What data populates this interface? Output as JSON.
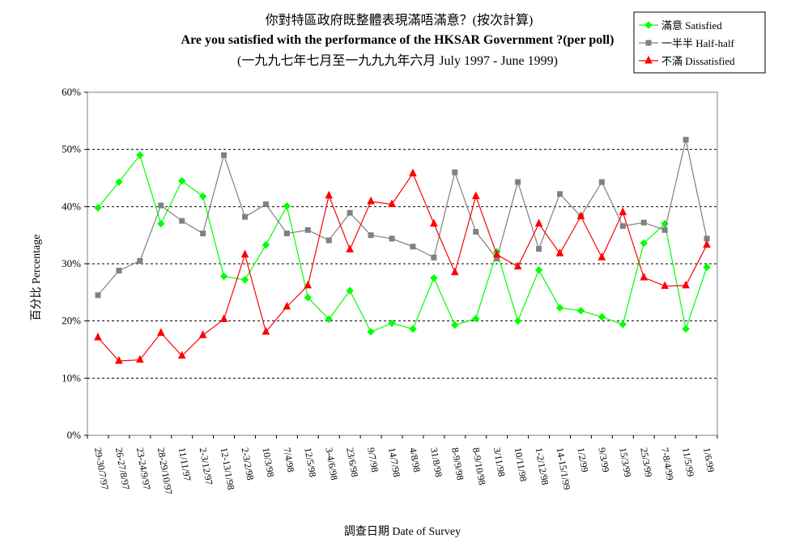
{
  "chart_data": {
    "type": "line",
    "title": "你對特區政府既整體表現滿唔滿意？(按次計算)",
    "subtitle": "Are you satisfied with the performance of the HKSAR Government ?(per poll)",
    "subtitle2": "(一九九七年七月至一九九九年六月 July 1997 - June 1999)",
    "xlabel": "調查日期 Date of Survey",
    "ylabel": "百分比 Percentage",
    "ylim": [
      0,
      60
    ],
    "y_ticks": [
      "0%",
      "10%",
      "20%",
      "30%",
      "40%",
      "50%",
      "60%"
    ],
    "grid": true,
    "legend_position": "top-right",
    "categories": [
      "29-30/7/97",
      "26-27/8/97",
      "23-24/9/97",
      "28-29/10/97",
      "11/11/97",
      "2-3/12/97",
      "12-13/1/98",
      "2-3/2/98",
      "10/3/98",
      "7/4/98",
      "12/5/98",
      "3-4/6/98",
      "23/6/98",
      "9/7/98",
      "14/7/98",
      "4/8/98",
      "31/8/98",
      "8-9/9/98",
      "8-9/10/98",
      "3/11/98",
      "10/11/98",
      "1-2/12/98",
      "14-15/1/99",
      "1/2/99",
      "9/3/99",
      "15/3/99",
      "25/3/99",
      "7-8/4/99",
      "11/5/99",
      "1/6/99"
    ],
    "series": [
      {
        "name": "滿意 Satisfied",
        "color": "#00ff00",
        "marker": "diamond",
        "values": [
          39.8,
          44.3,
          49,
          37,
          44.5,
          41.8,
          27.8,
          27.2,
          33.3,
          40.1,
          24.1,
          20.3,
          25.3,
          18.1,
          19.6,
          18.6,
          27.5,
          19.3,
          20.4,
          32.1,
          20,
          28.9,
          22.3,
          21.8,
          20.7,
          19.4,
          33.6,
          37,
          18.6,
          29.4
        ]
      },
      {
        "name": "一半半 Half-half",
        "color": "#808080",
        "marker": "square",
        "values": [
          24.5,
          28.8,
          30.5,
          40.2,
          37.5,
          35.3,
          49,
          38.2,
          40.4,
          35.3,
          35.9,
          34.1,
          38.9,
          35,
          34.4,
          33,
          31.1,
          46,
          35.6,
          30.9,
          44.3,
          32.6,
          42.2,
          38.3,
          44.3,
          36.6,
          37.2,
          35.9,
          51.7,
          34.4
        ]
      },
      {
        "name": "不滿 Dissatisfied",
        "color": "#ff0000",
        "marker": "triangle",
        "values": [
          17.1,
          13,
          13.2,
          17.9,
          13.9,
          17.5,
          20.3,
          31.6,
          18.1,
          22.5,
          26.2,
          41.9,
          32.5,
          40.9,
          40.4,
          45.8,
          37,
          28.5,
          41.8,
          31.6,
          29.5,
          37,
          31.8,
          38.3,
          31.1,
          39,
          27.6,
          26.1,
          26.2,
          33.3
        ]
      }
    ]
  }
}
